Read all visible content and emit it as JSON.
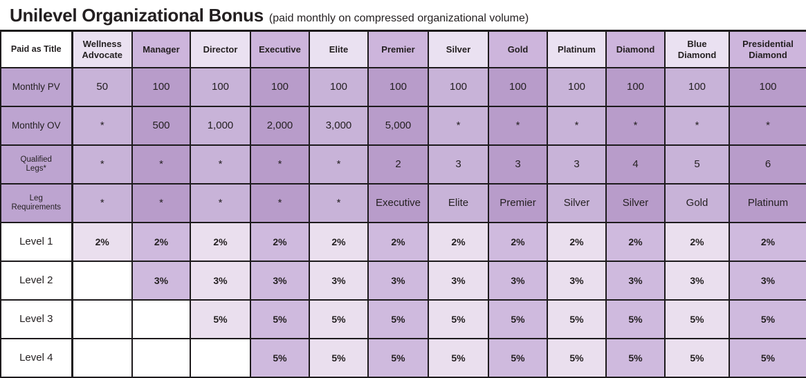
{
  "title": {
    "main": "Unilevel Organizational Bonus",
    "subtitle": "(paid monthly on compressed organizational volume)"
  },
  "table": {
    "corner_label": "Paid as Title",
    "columns": [
      "Wellness Advocate",
      "Manager",
      "Director",
      "Executive",
      "Elite",
      "Premier",
      "Silver",
      "Gold",
      "Platinum",
      "Diamond",
      "Blue Diamond",
      "Presidential Diamond"
    ],
    "rows": [
      {
        "label": "Monthly PV",
        "kind": "stat",
        "small_label": false,
        "values": [
          "50",
          "100",
          "100",
          "100",
          "100",
          "100",
          "100",
          "100",
          "100",
          "100",
          "100",
          "100"
        ]
      },
      {
        "label": "Monthly OV",
        "kind": "stat",
        "small_label": false,
        "values": [
          "*",
          "500",
          "1,000",
          "2,000",
          "3,000",
          "5,000",
          "*",
          "*",
          "*",
          "*",
          "*",
          "*"
        ]
      },
      {
        "label": "Qualified Legs*",
        "kind": "stat",
        "small_label": true,
        "values": [
          "*",
          "*",
          "*",
          "*",
          "*",
          "2",
          "3",
          "3",
          "3",
          "4",
          "5",
          "6"
        ]
      },
      {
        "label": "Leg Requirements",
        "kind": "stat",
        "small_label": true,
        "values": [
          "*",
          "*",
          "*",
          "*",
          "*",
          "Executive",
          "Elite",
          "Premier",
          "Silver",
          "Silver",
          "Gold",
          "Platinum"
        ]
      },
      {
        "label": "Level 1",
        "kind": "level",
        "small_label": false,
        "values": [
          "2%",
          "2%",
          "2%",
          "2%",
          "2%",
          "2%",
          "2%",
          "2%",
          "2%",
          "2%",
          "2%",
          "2%"
        ]
      },
      {
        "label": "Level 2",
        "kind": "level",
        "small_label": false,
        "values": [
          "",
          "3%",
          "3%",
          "3%",
          "3%",
          "3%",
          "3%",
          "3%",
          "3%",
          "3%",
          "3%",
          "3%"
        ]
      },
      {
        "label": "Level 3",
        "kind": "level",
        "small_label": false,
        "values": [
          "",
          "",
          "5%",
          "5%",
          "5%",
          "5%",
          "5%",
          "5%",
          "5%",
          "5%",
          "5%",
          "5%"
        ]
      },
      {
        "label": "Level 4",
        "kind": "level",
        "small_label": false,
        "values": [
          "",
          "",
          "",
          "5%",
          "5%",
          "5%",
          "5%",
          "5%",
          "5%",
          "5%",
          "5%",
          "5%"
        ]
      }
    ],
    "colors": {
      "header_light": "#eae1f1",
      "header_dark": "#cdb5dc",
      "stat_light": "#c8b3d8",
      "stat_dark": "#b89cca",
      "label_cell": "#bda4d0",
      "level_light": "#eadfee",
      "level_dark": "#cfbade",
      "border": "#1d1a1c",
      "text": "#231f20"
    }
  }
}
